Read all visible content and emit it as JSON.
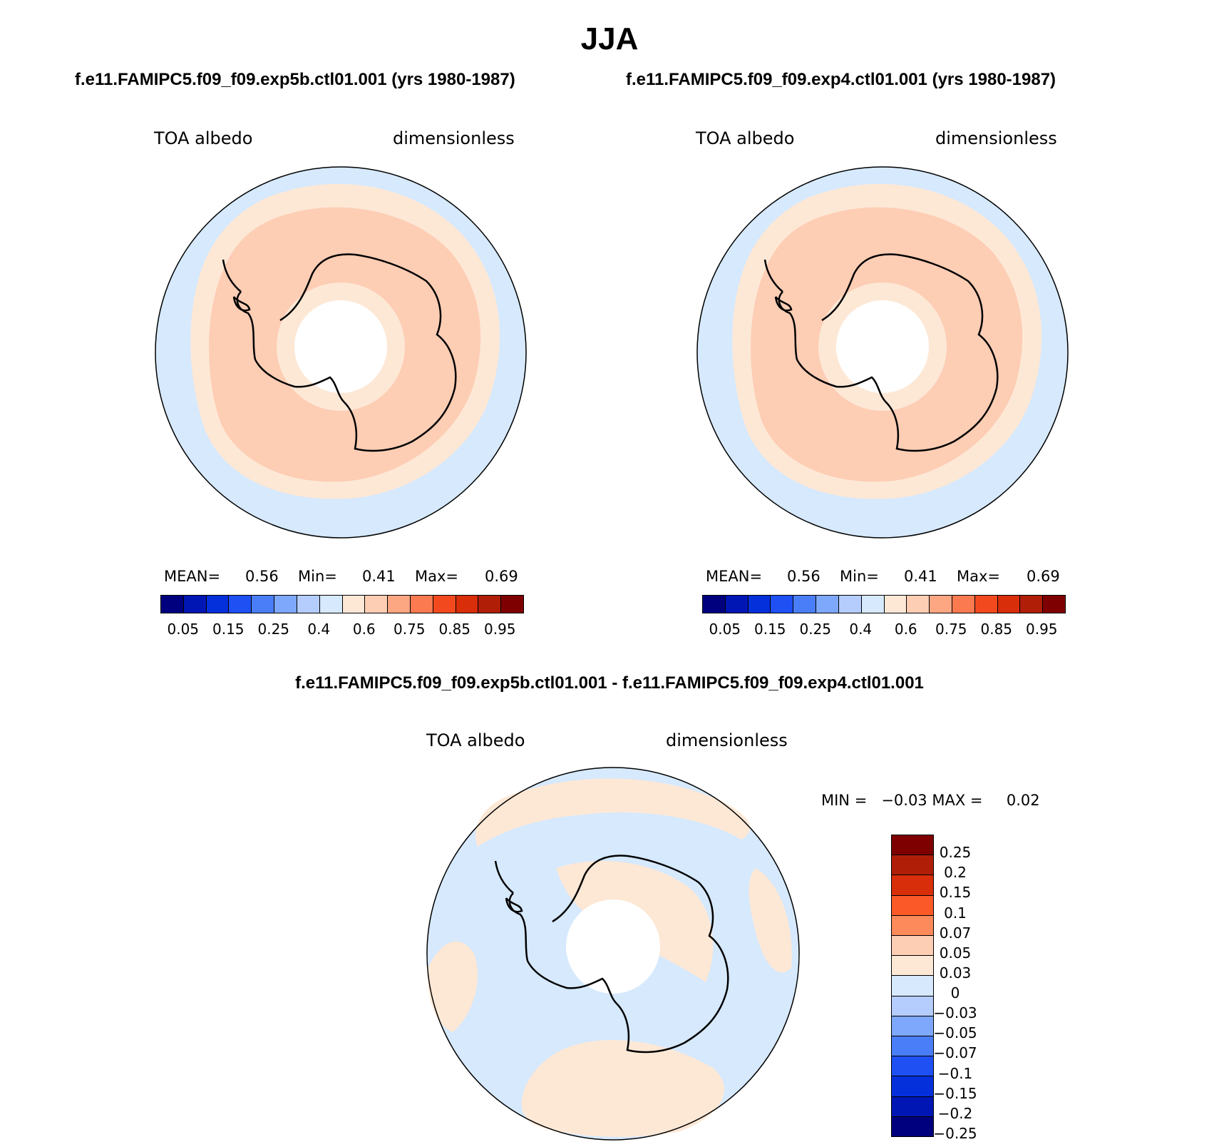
{
  "season": "JJA",
  "colors": {
    "ocean": "#d6e9fd",
    "mid_band": "#fde8d6",
    "high_band": "#fdcdb4",
    "hole": "#ffffff",
    "coast": "#000000"
  },
  "panel_left": {
    "run_title": "f.e11.FAMIPC5.f09_f09.exp5b.ctl01.001 (yrs 1980-1987)",
    "variable": "TOA albedo",
    "units": "dimensionless",
    "stats": {
      "mean_label": "MEAN=",
      "mean": "0.56",
      "min_label": "Min=",
      "min": "0.41",
      "max_label": "Max=",
      "max": "0.69"
    }
  },
  "panel_right": {
    "run_title": "f.e11.FAMIPC5.f09_f09.exp4.ctl01.001 (yrs 1980-1987)",
    "variable": "TOA albedo",
    "units": "dimensionless",
    "stats": {
      "mean_label": "MEAN=",
      "mean": "0.56",
      "min_label": "Min=",
      "min": "0.41",
      "max_label": "Max=",
      "max": "0.69"
    }
  },
  "colorbar_abs": {
    "colors": [
      "#00007f",
      "#0016b4",
      "#0430dc",
      "#1e50f4",
      "#4a7ef8",
      "#7ea8fb",
      "#b4cdfd",
      "#d6e9fd",
      "#fde8d6",
      "#fdcdb4",
      "#fca682",
      "#fb7a50",
      "#f24a1e",
      "#d92e0a",
      "#b01e08",
      "#7f0000"
    ],
    "tick_labels": [
      "0.05",
      "0.15",
      "0.25",
      "0.4",
      "0.6",
      "0.75",
      "0.85",
      "0.95"
    ]
  },
  "panel_diff": {
    "title": "f.e11.FAMIPC5.f09_f09.exp5b.ctl01.001 - f.e11.FAMIPC5.f09_f09.exp4.ctl01.001",
    "variable": "TOA albedo",
    "units": "dimensionless",
    "minmax": "MIN =   −0.03 MAX =     0.02"
  },
  "colorbar_diff": {
    "colors": [
      "#7f0000",
      "#b01e08",
      "#d92e0a",
      "#fb5a28",
      "#fc8a5a",
      "#fdcdb4",
      "#fde8d6",
      "#d6e9fd",
      "#b4cdfd",
      "#7ea8fb",
      "#4a7ef8",
      "#1e50f4",
      "#0430dc",
      "#0016b4",
      "#00007f"
    ],
    "tick_labels": [
      "0.25",
      "0.2",
      "0.15",
      "0.1",
      "0.07",
      "0.05",
      "0.03",
      "0",
      "−0.03",
      "−0.05",
      "−0.07",
      "−0.1",
      "−0.15",
      "−0.2",
      "−0.25"
    ]
  }
}
